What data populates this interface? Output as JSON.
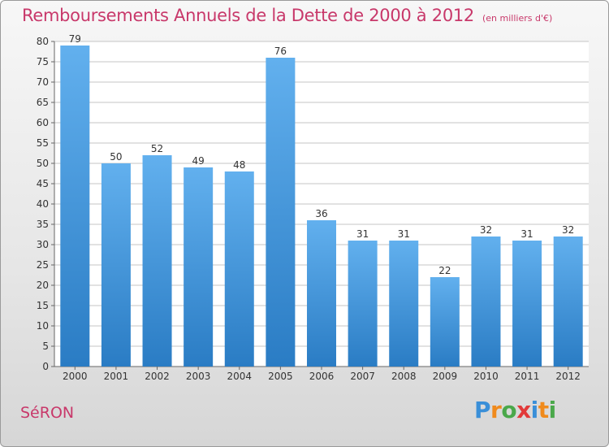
{
  "title": "Remboursements Annuels de la Dette de 2000 à 2012",
  "unit_note": "(en milliers d'€)",
  "commune": "SéRON",
  "brand": {
    "letters": [
      "P",
      "r",
      "o",
      "x",
      "i",
      "t",
      "i"
    ],
    "colors": [
      "#3a8fd8",
      "#f08a1c",
      "#4aa84a",
      "#e23a3a",
      "#3a8fd8",
      "#f08a1c",
      "#4aa84a"
    ]
  },
  "colors": {
    "bar_top": "#62b0ee",
    "bar_bottom": "#2a7cc4",
    "title": "#c8386a",
    "grid": "#c4c4c4"
  },
  "chart_data": {
    "type": "bar",
    "categories": [
      "2000",
      "2001",
      "2002",
      "2003",
      "2004",
      "2005",
      "2006",
      "2007",
      "2008",
      "2009",
      "2010",
      "2011",
      "2012"
    ],
    "values": [
      79,
      50,
      52,
      49,
      48,
      76,
      36,
      31,
      31,
      22,
      32,
      31,
      32
    ],
    "ylim": [
      0,
      80
    ],
    "yticks": [
      0,
      5,
      10,
      15,
      20,
      25,
      30,
      35,
      40,
      45,
      50,
      55,
      60,
      65,
      70,
      75,
      80
    ],
    "grid": true
  }
}
